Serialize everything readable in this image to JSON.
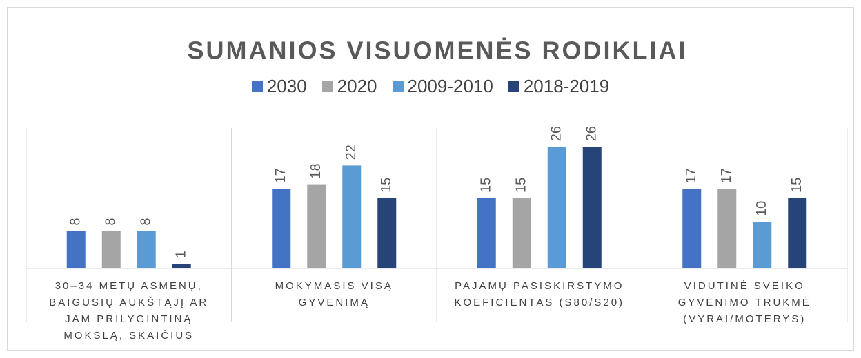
{
  "chart_data": {
    "type": "bar",
    "title": "SUMANIOS VISUOMENĖS RODIKLIAI",
    "categories": [
      "30–34 METŲ ASMENŲ, BAIGUSIŲ AUKŠTĄJĮ AR JAM PRILYGINTINĄ MOKSLĄ, SKAIČIUS",
      "MOKYMASIS VISĄ GYVENIMĄ",
      "PAJAMŲ PASISKIRSTYMO KOEFICIENTAS (S80/S20)",
      "VIDUTINĖ SVEIKO GYVENIMO TRUKMĖ (VYRAI/MOTERYS)"
    ],
    "series": [
      {
        "name": "2030",
        "color": "#4472c4",
        "values": [
          8,
          17,
          15,
          17
        ]
      },
      {
        "name": "2020",
        "color": "#a5a5a5",
        "values": [
          8,
          18,
          15,
          17
        ]
      },
      {
        "name": "2009-2010",
        "color": "#5b9bd5",
        "values": [
          8,
          22,
          26,
          10
        ]
      },
      {
        "name": "2018-2019",
        "color": "#264478",
        "values": [
          1,
          15,
          26,
          15
        ]
      }
    ],
    "ylim": [
      0,
      30
    ],
    "legend": "top"
  }
}
